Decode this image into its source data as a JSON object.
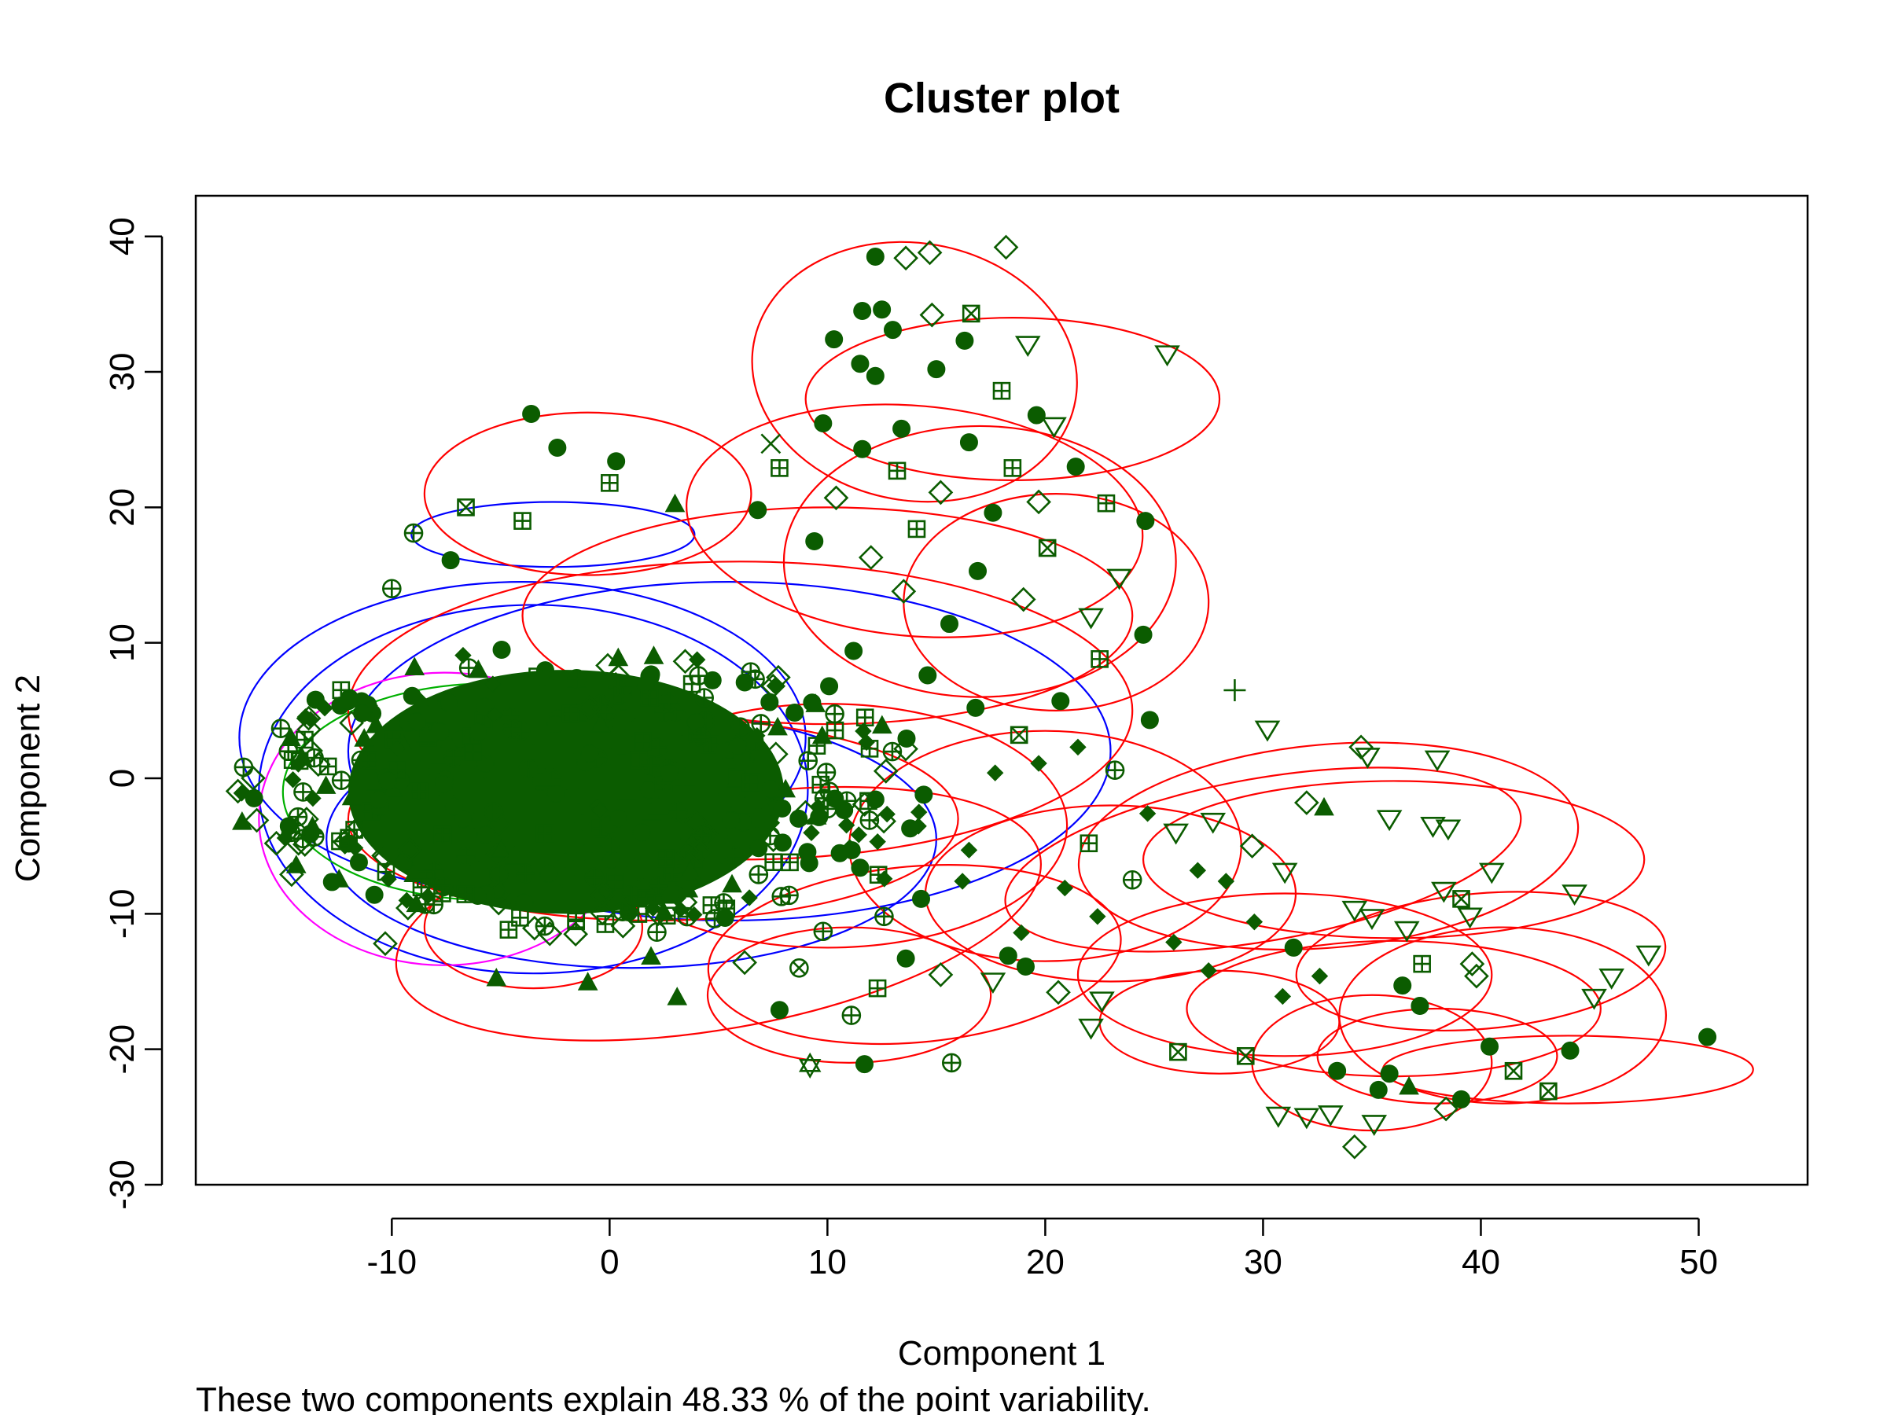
{
  "chart_data": {
    "type": "scatter",
    "title": "Cluster plot",
    "xlabel": "Component 1",
    "ylabel": "Component 2",
    "subtitle": "These two components explain 48.33 % of the point variability.",
    "xlim": [
      -19,
      55
    ],
    "ylim": [
      -30,
      43
    ],
    "x_ticks": [
      -10,
      0,
      10,
      20,
      30,
      40,
      50
    ],
    "y_ticks": [
      -30,
      -20,
      -10,
      0,
      10,
      20,
      30,
      40
    ],
    "grid": false,
    "legend": "none",
    "point_color": "#0b5c00",
    "ellipse_colors": {
      "primary": "#ff0000",
      "secondary": "#0000ff",
      "tertiary": "#ff00ff",
      "quaternary": "#00b000"
    },
    "dense_core": {
      "center": [
        -2,
        -1
      ],
      "half_extent": [
        10,
        9
      ]
    },
    "points": [
      {
        "x": 12.2,
        "y": 38.5,
        "shape": "circle"
      },
      {
        "x": 18.2,
        "y": 39.2,
        "shape": "diamond"
      },
      {
        "x": 14.7,
        "y": 38.8,
        "shape": "diamond"
      },
      {
        "x": 13.6,
        "y": 38.4,
        "shape": "diamond"
      },
      {
        "x": 11.6,
        "y": 34.5,
        "shape": "circle"
      },
      {
        "x": 12.5,
        "y": 34.6,
        "shape": "circle"
      },
      {
        "x": 14.8,
        "y": 34.2,
        "shape": "diamond"
      },
      {
        "x": 16.6,
        "y": 34.3,
        "shape": "box-x"
      },
      {
        "x": 10.3,
        "y": 32.4,
        "shape": "circle"
      },
      {
        "x": 13.0,
        "y": 33.1,
        "shape": "circle"
      },
      {
        "x": 16.3,
        "y": 32.3,
        "shape": "circle"
      },
      {
        "x": 19.2,
        "y": 32.0,
        "shape": "triangle-down"
      },
      {
        "x": 25.6,
        "y": 31.3,
        "shape": "triangle-down"
      },
      {
        "x": 11.5,
        "y": 30.6,
        "shape": "circle"
      },
      {
        "x": 12.2,
        "y": 29.7,
        "shape": "circle"
      },
      {
        "x": 15.0,
        "y": 30.2,
        "shape": "circle"
      },
      {
        "x": 18.0,
        "y": 28.6,
        "shape": "box-plus"
      },
      {
        "x": 19.6,
        "y": 26.8,
        "shape": "circle"
      },
      {
        "x": 9.8,
        "y": 26.2,
        "shape": "circle"
      },
      {
        "x": 13.4,
        "y": 25.8,
        "shape": "circle"
      },
      {
        "x": 20.4,
        "y": 26.0,
        "shape": "triangle-down"
      },
      {
        "x": 7.4,
        "y": 24.7,
        "shape": "cross"
      },
      {
        "x": 7.8,
        "y": 22.9,
        "shape": "box-plus"
      },
      {
        "x": 21.4,
        "y": 23.0,
        "shape": "circle"
      },
      {
        "x": -3.6,
        "y": 26.9,
        "shape": "circle"
      },
      {
        "x": -2.4,
        "y": 24.4,
        "shape": "circle"
      },
      {
        "x": 0.3,
        "y": 23.4,
        "shape": "circle"
      },
      {
        "x": 0.0,
        "y": 21.8,
        "shape": "box-plus"
      },
      {
        "x": 3.0,
        "y": 20.2,
        "shape": "triangle-up"
      },
      {
        "x": 22.8,
        "y": 20.3,
        "shape": "box-plus"
      },
      {
        "x": 24.6,
        "y": 19.0,
        "shape": "circle"
      },
      {
        "x": 6.8,
        "y": 19.8,
        "shape": "circle"
      },
      {
        "x": -9.0,
        "y": 18.1,
        "shape": "circle-plus"
      },
      {
        "x": -6.6,
        "y": 20.0,
        "shape": "box-x"
      },
      {
        "x": -4.0,
        "y": 19.0,
        "shape": "box-plus"
      },
      {
        "x": -10.0,
        "y": 14.0,
        "shape": "circle-plus"
      },
      {
        "x": -7.3,
        "y": 16.1,
        "shape": "circle"
      },
      {
        "x": -13.5,
        "y": 5.8,
        "shape": "circle"
      },
      {
        "x": -12.0,
        "y": 5.7,
        "shape": "circle"
      },
      {
        "x": -13.8,
        "y": 3.6,
        "shape": "diamond"
      },
      {
        "x": -16.2,
        "y": -3.1,
        "shape": "diamond"
      },
      {
        "x": -15.3,
        "y": -4.8,
        "shape": "diamond"
      },
      {
        "x": -14.6,
        "y": -7.1,
        "shape": "diamond"
      },
      {
        "x": -10.8,
        "y": -8.6,
        "shape": "circle"
      },
      {
        "x": -10.3,
        "y": -12.2,
        "shape": "diamond"
      },
      {
        "x": -5.2,
        "y": -14.8,
        "shape": "triangle-up"
      },
      {
        "x": -1.0,
        "y": -15.1,
        "shape": "triangle-up"
      },
      {
        "x": 1.9,
        "y": -13.2,
        "shape": "triangle-up"
      },
      {
        "x": 3.1,
        "y": -16.2,
        "shape": "triangle-up"
      },
      {
        "x": 7.8,
        "y": -17.1,
        "shape": "circle"
      },
      {
        "x": 9.2,
        "y": -21.2,
        "shape": "star-david"
      },
      {
        "x": 11.7,
        "y": -21.1,
        "shape": "circle"
      },
      {
        "x": 15.7,
        "y": -21.0,
        "shape": "circle-plus"
      },
      {
        "x": 17.6,
        "y": -15.0,
        "shape": "triangle-down"
      },
      {
        "x": 19.1,
        "y": -13.9,
        "shape": "circle"
      },
      {
        "x": 22.6,
        "y": -16.4,
        "shape": "triangle-down"
      },
      {
        "x": 22.1,
        "y": -18.4,
        "shape": "triangle-down"
      },
      {
        "x": 28.7,
        "y": 6.5,
        "shape": "plus"
      },
      {
        "x": 30.2,
        "y": 3.6,
        "shape": "triangle-down"
      },
      {
        "x": 34.5,
        "y": 2.3,
        "shape": "diamond"
      },
      {
        "x": 34.8,
        "y": 1.6,
        "shape": "triangle-down"
      },
      {
        "x": 38.0,
        "y": 1.4,
        "shape": "triangle-down"
      },
      {
        "x": 24.8,
        "y": 4.3,
        "shape": "circle"
      },
      {
        "x": 24.5,
        "y": 10.6,
        "shape": "circle"
      },
      {
        "x": 22.5,
        "y": 8.8,
        "shape": "box-plus"
      },
      {
        "x": 32.0,
        "y": -1.8,
        "shape": "diamond"
      },
      {
        "x": 32.8,
        "y": -2.2,
        "shape": "triangle-up"
      },
      {
        "x": 35.8,
        "y": -3.0,
        "shape": "triangle-down"
      },
      {
        "x": 38.5,
        "y": -3.7,
        "shape": "triangle-down"
      },
      {
        "x": 37.8,
        "y": -3.5,
        "shape": "triangle-down"
      },
      {
        "x": 40.5,
        "y": -6.9,
        "shape": "triangle-down"
      },
      {
        "x": 44.3,
        "y": -8.5,
        "shape": "triangle-down"
      },
      {
        "x": 47.7,
        "y": -13.0,
        "shape": "triangle-down"
      },
      {
        "x": 46.0,
        "y": -14.7,
        "shape": "triangle-down"
      },
      {
        "x": 45.2,
        "y": -16.2,
        "shape": "triangle-down"
      },
      {
        "x": 50.4,
        "y": -19.1,
        "shape": "circle"
      },
      {
        "x": 44.1,
        "y": -20.1,
        "shape": "circle"
      },
      {
        "x": 40.4,
        "y": -19.8,
        "shape": "circle"
      },
      {
        "x": 43.1,
        "y": -23.1,
        "shape": "box-x"
      },
      {
        "x": 41.5,
        "y": -21.6,
        "shape": "box-x"
      },
      {
        "x": 39.1,
        "y": -23.7,
        "shape": "circle"
      },
      {
        "x": 38.4,
        "y": -24.4,
        "shape": "diamond"
      },
      {
        "x": 35.3,
        "y": -23.0,
        "shape": "circle"
      },
      {
        "x": 35.8,
        "y": -21.8,
        "shape": "circle"
      },
      {
        "x": 33.4,
        "y": -21.6,
        "shape": "circle"
      },
      {
        "x": 34.2,
        "y": -27.2,
        "shape": "diamond"
      },
      {
        "x": 33.1,
        "y": -24.8,
        "shape": "triangle-down"
      },
      {
        "x": 30.7,
        "y": -24.9,
        "shape": "triangle-down"
      },
      {
        "x": 32.0,
        "y": -25.0,
        "shape": "triangle-down"
      },
      {
        "x": 35.1,
        "y": -25.5,
        "shape": "triangle-down"
      },
      {
        "x": 36.7,
        "y": -22.8,
        "shape": "triangle-up"
      },
      {
        "x": 26.1,
        "y": -20.2,
        "shape": "box-x"
      },
      {
        "x": 29.2,
        "y": -20.5,
        "shape": "box-x"
      },
      {
        "x": 37.2,
        "y": -16.8,
        "shape": "circle"
      },
      {
        "x": 36.4,
        "y": -15.3,
        "shape": "circle"
      },
      {
        "x": 37.3,
        "y": -13.7,
        "shape": "box-plus"
      },
      {
        "x": 34.2,
        "y": -9.7,
        "shape": "triangle-down"
      },
      {
        "x": 35.0,
        "y": -10.3,
        "shape": "triangle-down"
      },
      {
        "x": 36.6,
        "y": -11.2,
        "shape": "triangle-down"
      },
      {
        "x": 38.3,
        "y": -8.3,
        "shape": "triangle-down"
      },
      {
        "x": 39.5,
        "y": -10.2,
        "shape": "triangle-down"
      },
      {
        "x": 39.1,
        "y": -8.9,
        "shape": "box-x"
      },
      {
        "x": 39.8,
        "y": -14.6,
        "shape": "diamond"
      },
      {
        "x": 39.6,
        "y": -13.7,
        "shape": "diamond"
      },
      {
        "x": 27.0,
        "y": -6.8,
        "shape": "filled-diamond"
      },
      {
        "x": 28.3,
        "y": -7.6,
        "shape": "filled-diamond"
      },
      {
        "x": 29.6,
        "y": -10.6,
        "shape": "filled-diamond"
      },
      {
        "x": 31.4,
        "y": -12.5,
        "shape": "circle"
      },
      {
        "x": 32.6,
        "y": -14.6,
        "shape": "filled-diamond"
      },
      {
        "x": 30.9,
        "y": -16.1,
        "shape": "filled-diamond"
      },
      {
        "x": 27.5,
        "y": -14.2,
        "shape": "filled-diamond"
      },
      {
        "x": 25.9,
        "y": -12.1,
        "shape": "filled-diamond"
      },
      {
        "x": 22.4,
        "y": -10.2,
        "shape": "filled-diamond"
      },
      {
        "x": 20.9,
        "y": -8.1,
        "shape": "filled-diamond"
      },
      {
        "x": 18.9,
        "y": -11.4,
        "shape": "filled-diamond"
      },
      {
        "x": 16.5,
        "y": -5.3,
        "shape": "filled-diamond"
      },
      {
        "x": 14.2,
        "y": -2.5,
        "shape": "filled-diamond"
      },
      {
        "x": 17.7,
        "y": 0.4,
        "shape": "filled-diamond"
      },
      {
        "x": 19.7,
        "y": 1.1,
        "shape": "filled-diamond"
      },
      {
        "x": 21.5,
        "y": 2.3,
        "shape": "filled-diamond"
      },
      {
        "x": 23.2,
        "y": 0.6,
        "shape": "circle-plus"
      },
      {
        "x": 24.7,
        "y": -2.6,
        "shape": "filled-diamond"
      },
      {
        "x": 26.0,
        "y": -4.0,
        "shape": "triangle-down"
      },
      {
        "x": 27.7,
        "y": -3.2,
        "shape": "triangle-down"
      },
      {
        "x": 29.5,
        "y": -5.0,
        "shape": "diamond"
      },
      {
        "x": 31.0,
        "y": -6.9,
        "shape": "triangle-down"
      },
      {
        "x": 24.0,
        "y": -7.5,
        "shape": "circle-plus"
      },
      {
        "x": 22.0,
        "y": -4.8,
        "shape": "box-plus"
      },
      {
        "x": 13.6,
        "y": -13.3,
        "shape": "circle"
      },
      {
        "x": 15.2,
        "y": -14.5,
        "shape": "diamond"
      },
      {
        "x": 12.3,
        "y": -15.5,
        "shape": "box-plus"
      },
      {
        "x": 11.1,
        "y": -17.5,
        "shape": "circle-plus"
      },
      {
        "x": 8.7,
        "y": -14.0,
        "shape": "circle-x"
      },
      {
        "x": 6.2,
        "y": -13.6,
        "shape": "diamond"
      },
      {
        "x": 5.3,
        "y": -10.3,
        "shape": "circle"
      },
      {
        "x": 9.8,
        "y": -11.3,
        "shape": "circle-plus"
      },
      {
        "x": 12.6,
        "y": -10.2,
        "shape": "circle-plus"
      },
      {
        "x": 14.3,
        "y": -8.9,
        "shape": "circle"
      },
      {
        "x": 13.8,
        "y": -3.7,
        "shape": "circle"
      },
      {
        "x": 11.5,
        "y": -6.6,
        "shape": "circle"
      },
      {
        "x": 16.2,
        "y": -7.6,
        "shape": "filled-diamond"
      },
      {
        "x": 18.3,
        "y": -13.1,
        "shape": "circle"
      },
      {
        "x": 20.6,
        "y": -15.8,
        "shape": "diamond"
      },
      {
        "x": 15.6,
        "y": 11.4,
        "shape": "circle"
      },
      {
        "x": 13.5,
        "y": 13.8,
        "shape": "diamond"
      },
      {
        "x": 11.2,
        "y": 9.4,
        "shape": "circle"
      },
      {
        "x": 14.6,
        "y": 7.6,
        "shape": "circle"
      },
      {
        "x": 16.8,
        "y": 5.2,
        "shape": "circle"
      },
      {
        "x": 18.8,
        "y": 3.2,
        "shape": "box-x"
      },
      {
        "x": 20.7,
        "y": 5.7,
        "shape": "circle"
      },
      {
        "x": 22.1,
        "y": 11.9,
        "shape": "triangle-down"
      },
      {
        "x": 23.4,
        "y": 14.8,
        "shape": "triangle-down"
      },
      {
        "x": 20.1,
        "y": 17.0,
        "shape": "box-x"
      },
      {
        "x": 17.6,
        "y": 19.6,
        "shape": "circle"
      },
      {
        "x": 15.2,
        "y": 21.1,
        "shape": "diamond"
      },
      {
        "x": 13.2,
        "y": 22.7,
        "shape": "box-plus"
      },
      {
        "x": 11.6,
        "y": 24.3,
        "shape": "circle"
      },
      {
        "x": 16.5,
        "y": 24.8,
        "shape": "circle"
      },
      {
        "x": 18.5,
        "y": 22.9,
        "shape": "box-plus"
      },
      {
        "x": 19.7,
        "y": 20.4,
        "shape": "diamond"
      },
      {
        "x": 10.4,
        "y": 20.7,
        "shape": "diamond"
      },
      {
        "x": 9.4,
        "y": 17.5,
        "shape": "circle"
      },
      {
        "x": 12.0,
        "y": 16.3,
        "shape": "diamond"
      },
      {
        "x": 14.1,
        "y": 18.4,
        "shape": "box-plus"
      },
      {
        "x": 16.9,
        "y": 15.3,
        "shape": "circle"
      },
      {
        "x": 19.0,
        "y": 13.2,
        "shape": "diamond"
      }
    ],
    "ellipses": [
      {
        "cx": -3.5,
        "cy": -0.8,
        "rx": 12.6,
        "ry": 13.6,
        "angle": 0,
        "series": "secondary"
      },
      {
        "cx": -4.0,
        "cy": 3.0,
        "rx": 13.0,
        "ry": 11.5,
        "angle": 0,
        "series": "secondary"
      },
      {
        "cx": 5.5,
        "cy": 2.0,
        "rx": 17.5,
        "ry": 12.5,
        "angle": 0,
        "series": "secondary"
      },
      {
        "cx": -2.6,
        "cy": 18.0,
        "rx": 6.5,
        "ry": 2.4,
        "angle": 0,
        "series": "secondary"
      },
      {
        "cx": 1.0,
        "cy": -4.5,
        "rx": 14.0,
        "ry": 9.5,
        "angle": 0,
        "series": "secondary"
      },
      {
        "cx": -7.6,
        "cy": -3.0,
        "rx": 8.5,
        "ry": 10.8,
        "angle": 0,
        "series": "tertiary"
      },
      {
        "cx": -5.5,
        "cy": -1.0,
        "rx": 9.5,
        "ry": 8.0,
        "angle": 0,
        "series": "quaternary"
      },
      {
        "cx": -1.0,
        "cy": 21.0,
        "rx": 7.5,
        "ry": 6.0,
        "angle": 0,
        "series": "primary"
      },
      {
        "cx": 14.0,
        "cy": 30.0,
        "rx": 7.5,
        "ry": 9.5,
        "angle": -10,
        "series": "primary"
      },
      {
        "cx": 18.5,
        "cy": 28.0,
        "rx": 9.5,
        "ry": 6.0,
        "angle": 0,
        "series": "primary"
      },
      {
        "cx": 14.0,
        "cy": 19.0,
        "rx": 10.5,
        "ry": 8.5,
        "angle": -5,
        "series": "primary"
      },
      {
        "cx": 17.0,
        "cy": 16.0,
        "rx": 9.0,
        "ry": 10.0,
        "angle": 0,
        "series": "primary"
      },
      {
        "cx": 20.5,
        "cy": 13.0,
        "rx": 7.0,
        "ry": 8.0,
        "angle": 0,
        "series": "primary"
      },
      {
        "cx": 10.0,
        "cy": 12.0,
        "rx": 14.0,
        "ry": 8.0,
        "angle": 0,
        "series": "primary"
      },
      {
        "cx": 6.0,
        "cy": 5.0,
        "rx": 18.0,
        "ry": 11.0,
        "angle": 0,
        "series": "primary"
      },
      {
        "cx": 14.0,
        "cy": -13.0,
        "rx": 9.5,
        "ry": 6.5,
        "angle": 5,
        "series": "primary"
      },
      {
        "cx": 11.0,
        "cy": -16.0,
        "rx": 6.5,
        "ry": 5.0,
        "angle": 0,
        "series": "primary"
      },
      {
        "cx": 5.0,
        "cy": -10.0,
        "rx": 15.0,
        "ry": 8.5,
        "angle": 10,
        "series": "primary"
      },
      {
        "cx": 20.0,
        "cy": -5.0,
        "rx": 9.0,
        "ry": 8.5,
        "angle": 0,
        "series": "primary"
      },
      {
        "cx": 23.0,
        "cy": -8.5,
        "rx": 8.5,
        "ry": 6.5,
        "angle": 0,
        "series": "primary"
      },
      {
        "cx": 30.0,
        "cy": -6.0,
        "rx": 12.0,
        "ry": 6.0,
        "angle": 10,
        "series": "primary"
      },
      {
        "cx": 33.0,
        "cy": -5.0,
        "rx": 11.5,
        "ry": 7.5,
        "angle": 5,
        "series": "primary"
      },
      {
        "cx": 36.0,
        "cy": -6.0,
        "rx": 11.5,
        "ry": 5.8,
        "angle": 0,
        "series": "primary"
      },
      {
        "cx": 31.0,
        "cy": -14.5,
        "rx": 9.5,
        "ry": 6.0,
        "angle": 0,
        "series": "primary"
      },
      {
        "cx": 36.0,
        "cy": -17.0,
        "rx": 9.5,
        "ry": 5.0,
        "angle": 0,
        "series": "primary"
      },
      {
        "cx": 41.0,
        "cy": -17.5,
        "rx": 7.5,
        "ry": 6.5,
        "angle": 0,
        "series": "primary"
      },
      {
        "cx": 40.0,
        "cy": -13.5,
        "rx": 8.5,
        "ry": 5.0,
        "angle": 5,
        "series": "primary"
      },
      {
        "cx": 35.0,
        "cy": -21.0,
        "rx": 5.5,
        "ry": 5.0,
        "angle": 0,
        "series": "primary"
      },
      {
        "cx": 44.0,
        "cy": -21.5,
        "rx": 8.5,
        "ry": 2.5,
        "angle": 0,
        "series": "primary"
      },
      {
        "cx": 38.0,
        "cy": -20.5,
        "rx": 5.5,
        "ry": 3.5,
        "angle": 0,
        "series": "primary"
      },
      {
        "cx": 28.0,
        "cy": -18.0,
        "rx": 5.5,
        "ry": 3.8,
        "angle": 0,
        "series": "primary"
      },
      {
        "cx": -3.5,
        "cy": -11.0,
        "rx": 5.0,
        "ry": 4.5,
        "angle": 0,
        "series": "primary"
      },
      {
        "cx": 2.0,
        "cy": -3.0,
        "rx": 14.0,
        "ry": 7.5,
        "angle": 0,
        "series": "primary"
      },
      {
        "cx": 10.0,
        "cy": -3.5,
        "rx": 11.0,
        "ry": 9.0,
        "angle": 0,
        "series": "primary"
      }
    ]
  }
}
